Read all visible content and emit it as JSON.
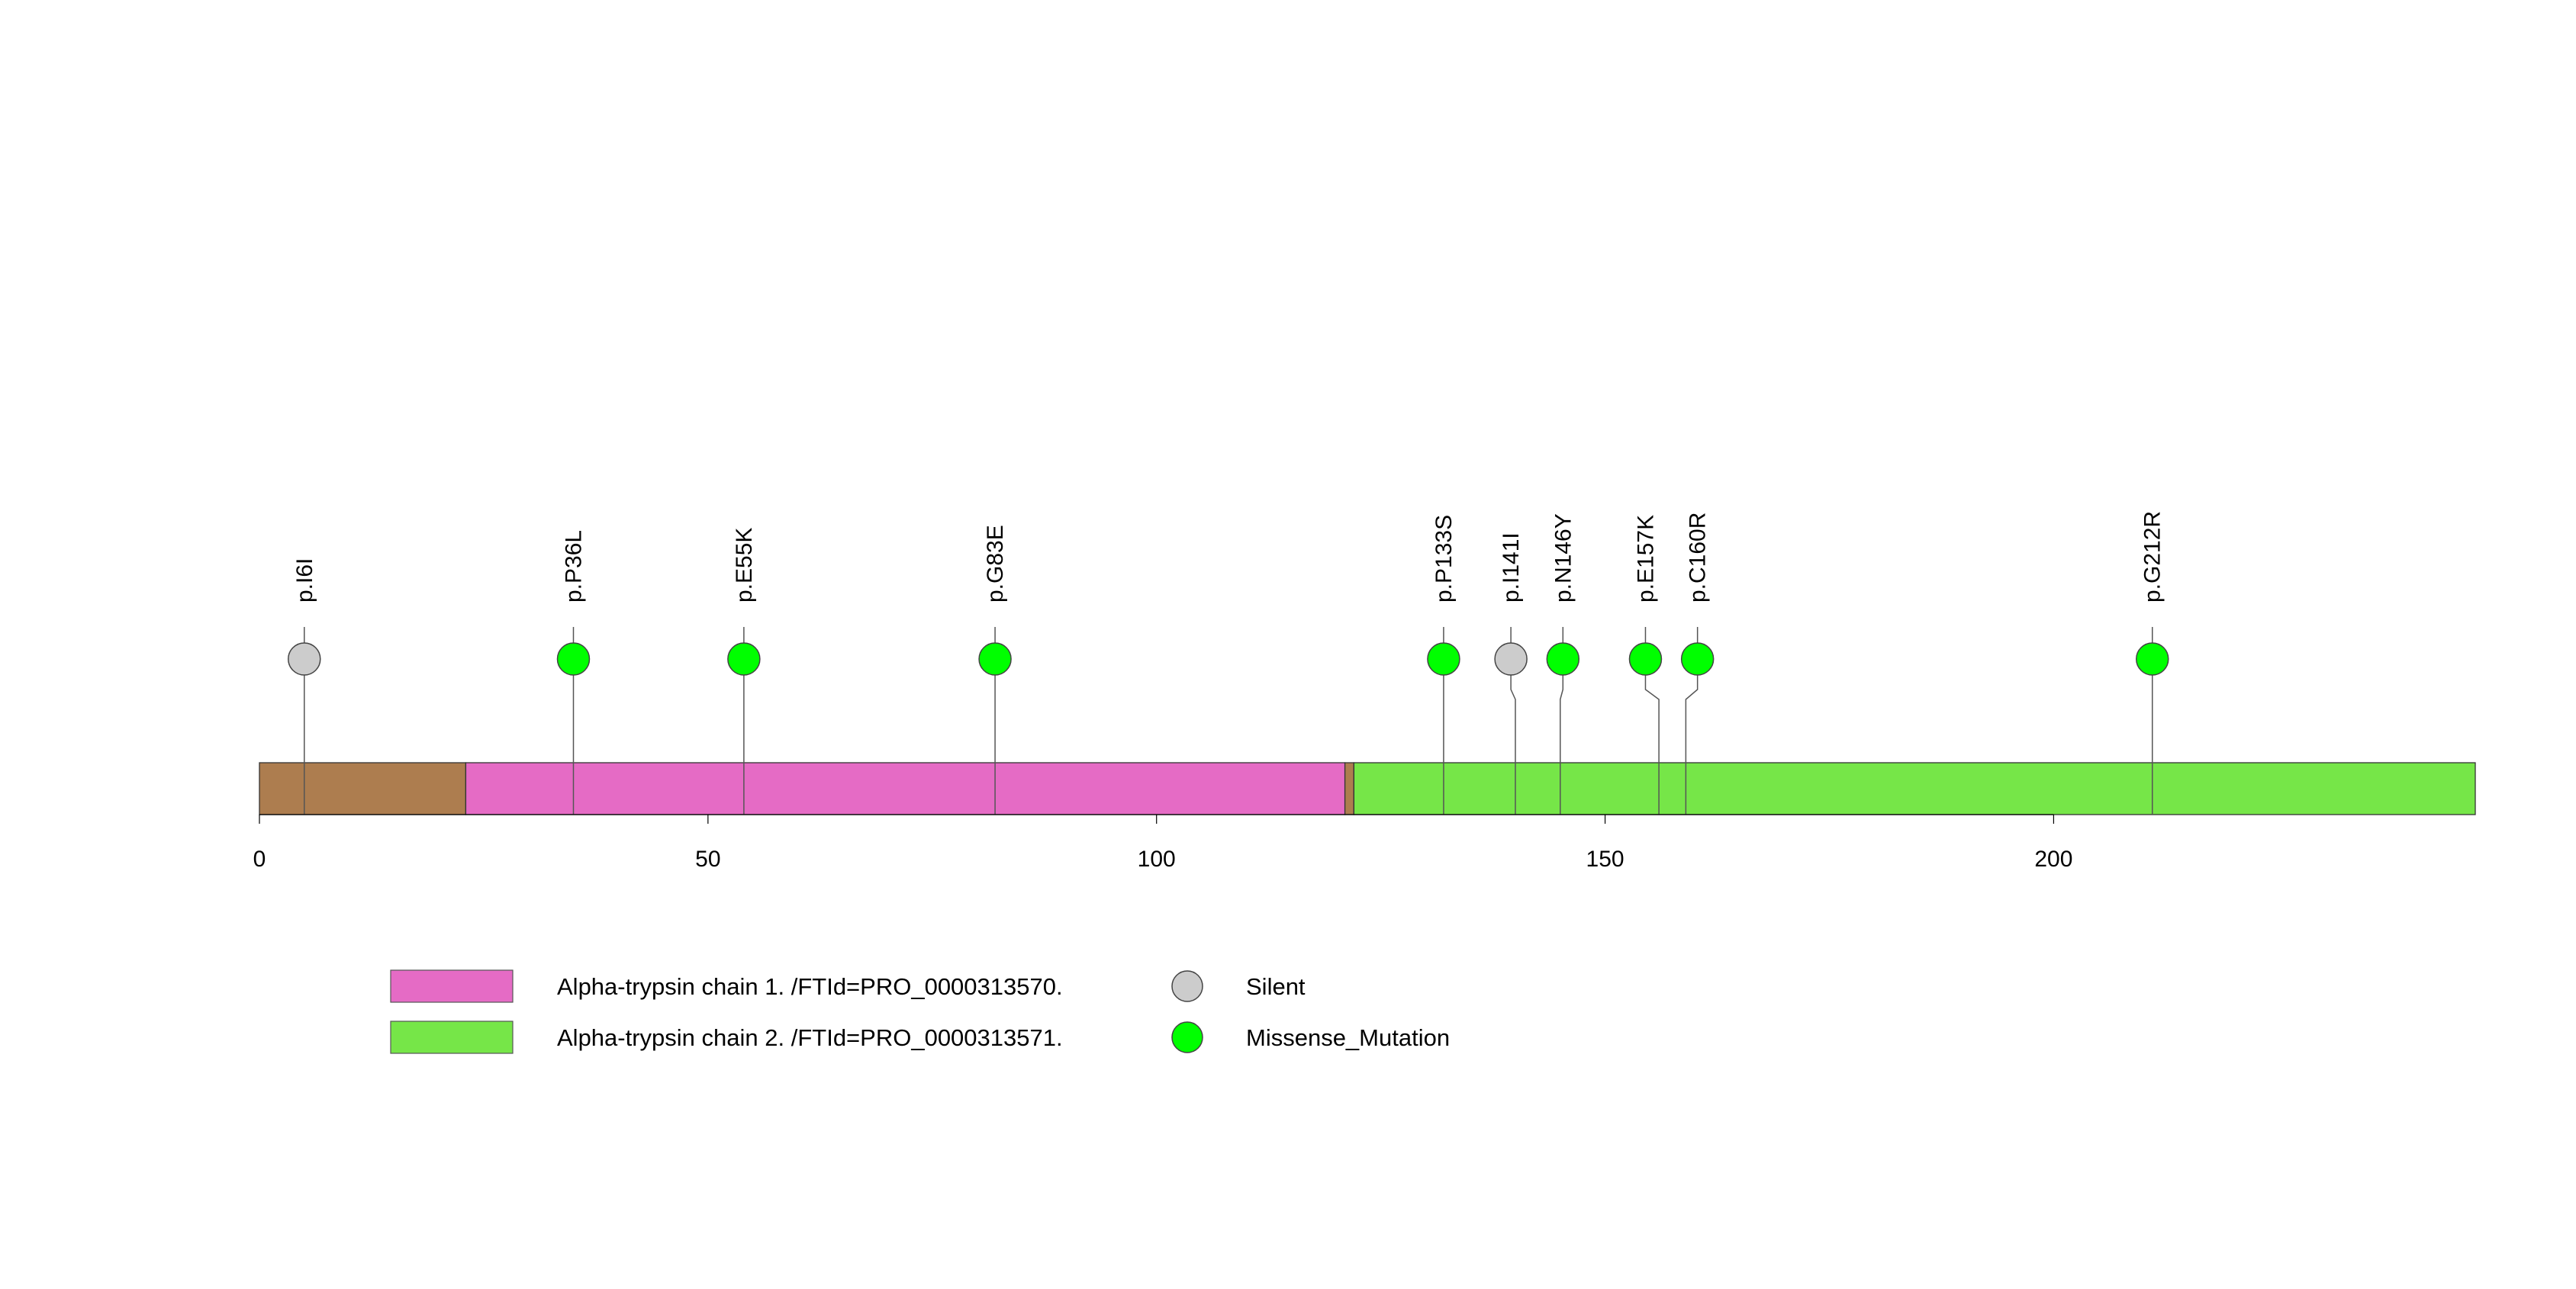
{
  "chart_data": {
    "type": "lollipop",
    "title": "",
    "xlim": [
      0,
      247
    ],
    "x_ticks": [
      0,
      50,
      100,
      150,
      200
    ],
    "protein_length": 247,
    "regions": [
      {
        "name": "signal",
        "label": "",
        "start": 0,
        "end": 23,
        "color": "#AD7D4F"
      },
      {
        "name": "chain1",
        "label": "Alpha-trypsin chain 1. /FTId=PRO_0000313570.",
        "start": 23,
        "end": 121,
        "color": "#E56BC5"
      },
      {
        "name": "linker",
        "label": "",
        "start": 121,
        "end": 122,
        "color": "#AD7D4F"
      },
      {
        "name": "chain2",
        "label": "Alpha-trypsin chain 2. /FTId=PRO_0000313571.",
        "start": 122,
        "end": 247,
        "color": "#76E648"
      }
    ],
    "mutations": [
      {
        "label": "p.I6I",
        "position": 5,
        "display_position": 5,
        "type": "Silent"
      },
      {
        "label": "p.P36L",
        "position": 35,
        "display_position": 35,
        "type": "Missense_Mutation"
      },
      {
        "label": "p.E55K",
        "position": 54,
        "display_position": 54,
        "type": "Missense_Mutation"
      },
      {
        "label": "p.G83E",
        "position": 82,
        "display_position": 82,
        "type": "Missense_Mutation"
      },
      {
        "label": "p.P133S",
        "position": 132,
        "display_position": 132,
        "type": "Missense_Mutation"
      },
      {
        "label": "p.I141I",
        "position": 140,
        "display_position": 139.5,
        "type": "Silent"
      },
      {
        "label": "p.N146Y",
        "position": 145,
        "display_position": 145.3,
        "type": "Missense_Mutation"
      },
      {
        "label": "p.E157K",
        "position": 156,
        "display_position": 154.5,
        "type": "Missense_Mutation"
      },
      {
        "label": "p.C160R",
        "position": 159,
        "display_position": 160.3,
        "type": "Missense_Mutation"
      },
      {
        "label": "p.G212R",
        "position": 211,
        "display_position": 211,
        "type": "Missense_Mutation"
      }
    ],
    "mutation_types": [
      {
        "name": "Silent",
        "color": "#CCCCCC"
      },
      {
        "name": "Missense_Mutation",
        "color": "#00FF00"
      }
    ],
    "legend": {
      "regions": [
        {
          "label": "Alpha-trypsin chain 1. /FTId=PRO_0000313570.",
          "color": "#E56BC5"
        },
        {
          "label": "Alpha-trypsin chain 2. /FTId=PRO_0000313571.",
          "color": "#76E648"
        }
      ],
      "mutation_types": [
        {
          "label": "Silent",
          "color": "#CCCCCC"
        },
        {
          "label": "Missense_Mutation",
          "color": "#00FF00"
        }
      ]
    }
  }
}
